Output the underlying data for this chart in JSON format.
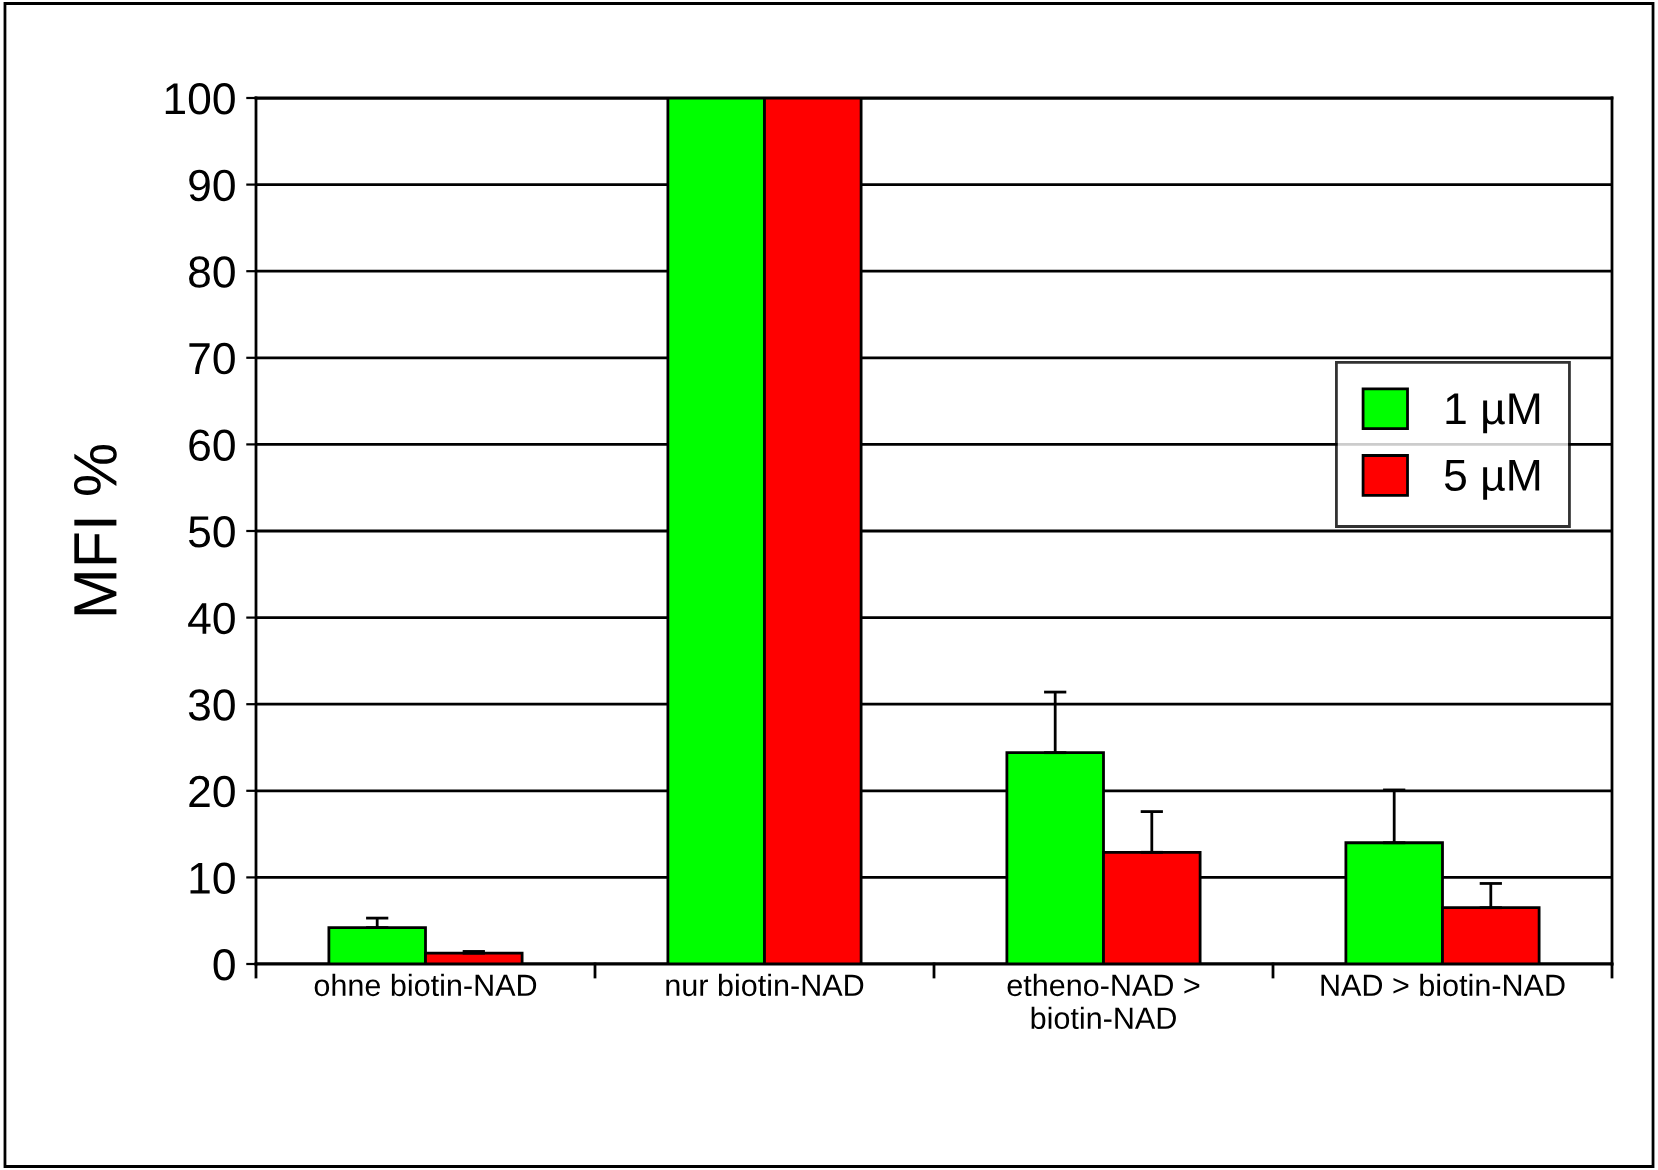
{
  "chart_data": {
    "type": "bar",
    "ylabel": "MFI %",
    "categories": [
      "ohne biotin-NAD",
      "nur biotin-NAD",
      "etheno-NAD >\nbiotin-NAD",
      "NAD > biotin-NAD"
    ],
    "series": [
      {
        "name": "1 µM",
        "color": "#00ff00",
        "values": [
          4.2,
          100,
          24.4,
          14.0
        ],
        "errors": [
          [
            4.2,
            5.3
          ],
          null,
          [
            24.4,
            31.4
          ],
          [
            14.0,
            20.1
          ]
        ]
      },
      {
        "name": "5 µM",
        "color": "#ff0000",
        "values": [
          1.25,
          100,
          12.9,
          6.5
        ],
        "errors": [
          [
            1.25,
            1.45
          ],
          null,
          [
            12.9,
            17.6
          ],
          [
            6.5,
            9.3
          ]
        ]
      }
    ],
    "ylim": [
      0,
      100
    ],
    "yticks": [
      0,
      10,
      20,
      30,
      40,
      50,
      60,
      70,
      80,
      90,
      100
    ],
    "grid": "y",
    "legend": "right"
  }
}
